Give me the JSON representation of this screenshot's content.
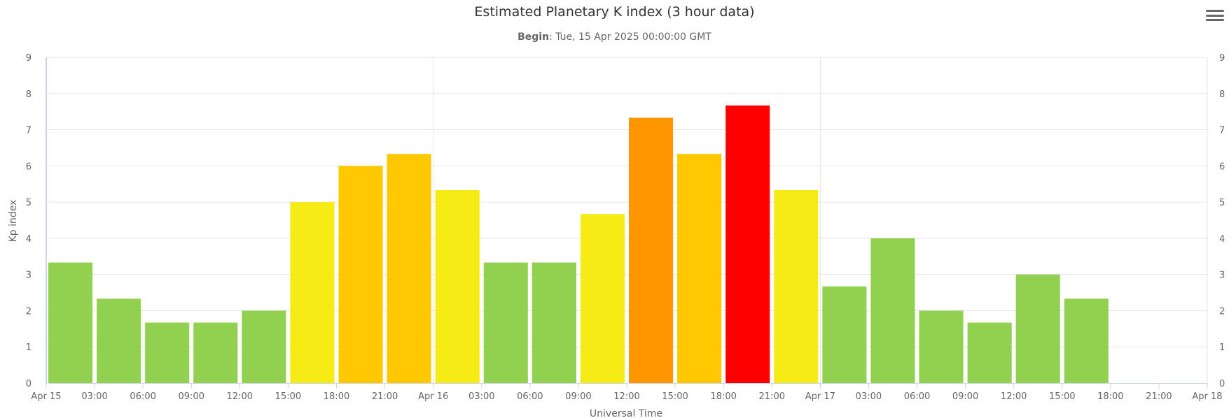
{
  "chart_data": {
    "type": "bar",
    "title": "Estimated Planetary K index (3 hour data)",
    "subtitle_label": "Begin",
    "subtitle_value": ": Tue, 15 Apr 2025 00:00:00 GMT",
    "xlabel": "Universal Time",
    "ylabel": "Kp index",
    "ylim": [
      0,
      9
    ],
    "yticks": [
      "0",
      "1",
      "2",
      "3",
      "4",
      "5",
      "6",
      "7",
      "8",
      "9"
    ],
    "xticks": [
      "Apr 15",
      "03:00",
      "06:00",
      "09:00",
      "12:00",
      "15:00",
      "18:00",
      "21:00",
      "Apr 16",
      "03:00",
      "06:00",
      "09:00",
      "12:00",
      "15:00",
      "18:00",
      "21:00",
      "Apr 17",
      "03:00",
      "06:00",
      "09:00",
      "12:00",
      "15:00",
      "18:00",
      "21:00",
      "Apr 18"
    ],
    "grid": true,
    "values": [
      3.33,
      2.33,
      1.67,
      1.67,
      2.0,
      5.0,
      6.0,
      6.33,
      5.33,
      3.33,
      3.33,
      4.67,
      7.33,
      6.33,
      7.67,
      5.33,
      2.67,
      4.0,
      2.0,
      1.67,
      3.0,
      2.33
    ],
    "colors": {
      "below_5": "#92d050",
      "g1": "#f6eb14",
      "g2": "#ffc800",
      "g3": "#ff9600",
      "g4": "#ff0000"
    }
  },
  "menu_icon": "hamburger-menu-icon"
}
